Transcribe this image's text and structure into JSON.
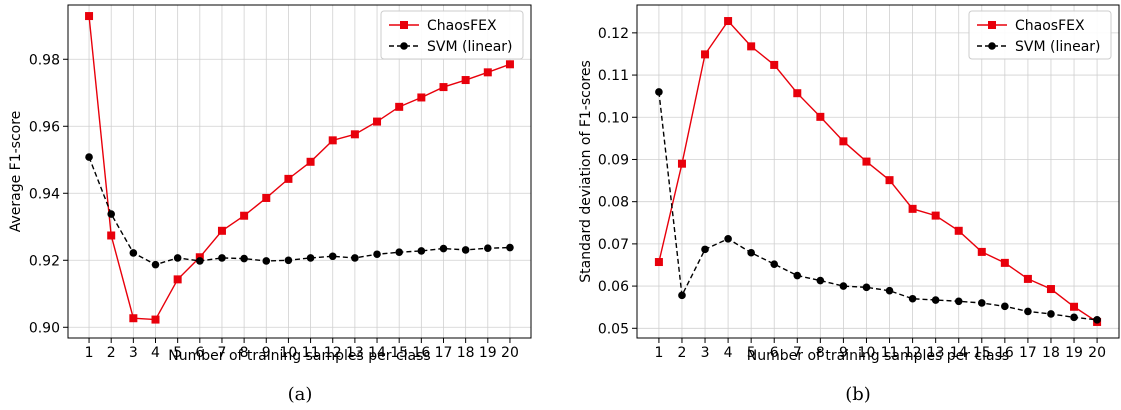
{
  "chart_data": [
    {
      "type": "line",
      "panel_label": "(a)",
      "xlabel": "Number of training samples per class",
      "ylabel": "Average F1-score",
      "x": [
        1,
        2,
        3,
        4,
        5,
        6,
        7,
        8,
        9,
        10,
        11,
        12,
        13,
        14,
        15,
        16,
        17,
        18,
        19,
        20
      ],
      "xticks": [
        "1",
        "2",
        "3",
        "4",
        "5",
        "6",
        "7",
        "8",
        "9",
        "10",
        "11",
        "12",
        "13",
        "14",
        "15",
        "16",
        "17",
        "18",
        "19",
        "20"
      ],
      "ylim": [
        0.8968,
        0.9962
      ],
      "yticks": [
        0.9,
        0.92,
        0.94,
        0.96,
        0.98
      ],
      "ytick_labels": [
        "0.90",
        "0.92",
        "0.94",
        "0.96",
        "0.98"
      ],
      "grid": true,
      "legend": "top-right",
      "series": [
        {
          "name": "ChaosFEX",
          "color": "#e8000b",
          "marker": "square",
          "linestyle": "solid",
          "values": [
            0.9929,
            0.9274,
            0.9027,
            0.9023,
            0.9143,
            0.9209,
            0.9288,
            0.9333,
            0.9386,
            0.9443,
            0.9494,
            0.9558,
            0.9576,
            0.9614,
            0.9658,
            0.9686,
            0.9717,
            0.9738,
            0.9761,
            0.9785
          ]
        },
        {
          "name": "SVM (linear)",
          "color": "#000000",
          "marker": "circle",
          "linestyle": "dashed",
          "values": [
            0.9508,
            0.9338,
            0.9222,
            0.9187,
            0.9207,
            0.9198,
            0.9207,
            0.9205,
            0.9198,
            0.92,
            0.9207,
            0.9212,
            0.9207,
            0.9218,
            0.9224,
            0.9228,
            0.9235,
            0.9231,
            0.9236,
            0.9238
          ]
        }
      ]
    },
    {
      "type": "line",
      "panel_label": "(b)",
      "xlabel": "Number of training samples per class",
      "ylabel": "Standard deviation of F1-scores",
      "x": [
        1,
        2,
        3,
        4,
        5,
        6,
        7,
        8,
        9,
        10,
        11,
        12,
        13,
        14,
        15,
        16,
        17,
        18,
        19,
        20
      ],
      "xticks": [
        "1",
        "2",
        "3",
        "4",
        "5",
        "6",
        "7",
        "8",
        "9",
        "10",
        "11",
        "12",
        "13",
        "14",
        "15",
        "16",
        "17",
        "18",
        "19",
        "20"
      ],
      "ylim": [
        0.0477,
        0.1266
      ],
      "yticks": [
        0.05,
        0.06,
        0.07,
        0.08,
        0.09,
        0.1,
        0.11,
        0.12
      ],
      "ytick_labels": [
        "0.05",
        "0.06",
        "0.07",
        "0.08",
        "0.09",
        "0.10",
        "0.11",
        "0.12"
      ],
      "grid": true,
      "legend": "top-right",
      "series": [
        {
          "name": "ChaosFEX",
          "color": "#e8000b",
          "marker": "square",
          "linestyle": "solid",
          "values": [
            0.0657,
            0.089,
            0.1149,
            0.1228,
            0.1168,
            0.1124,
            0.1057,
            0.1001,
            0.0943,
            0.0895,
            0.0851,
            0.0783,
            0.0767,
            0.0731,
            0.0681,
            0.0655,
            0.0617,
            0.0593,
            0.0551,
            0.0515
          ]
        },
        {
          "name": "SVM (linear)",
          "color": "#000000",
          "marker": "circle",
          "linestyle": "dashed",
          "values": [
            0.106,
            0.0578,
            0.0687,
            0.0712,
            0.0679,
            0.0652,
            0.0625,
            0.0613,
            0.06,
            0.0597,
            0.0589,
            0.057,
            0.0567,
            0.0564,
            0.056,
            0.0552,
            0.054,
            0.0534,
            0.0526,
            0.052
          ]
        }
      ]
    }
  ]
}
